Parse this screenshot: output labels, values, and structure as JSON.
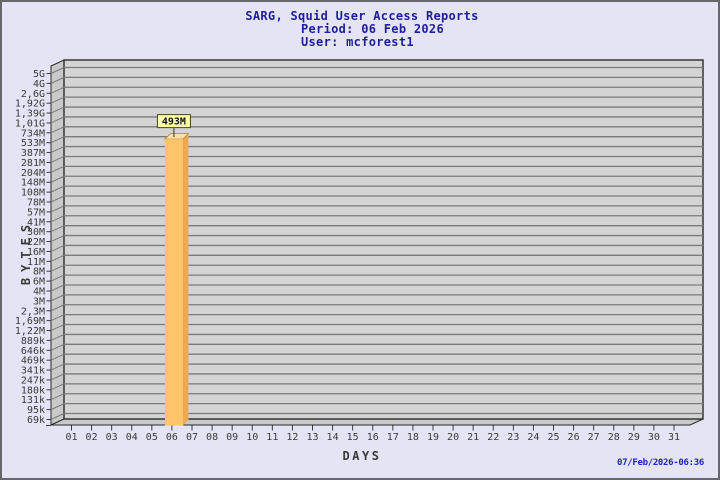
{
  "header": {
    "title": "SARG, Squid User Access Reports",
    "period_line": "Period: 06 Feb 2026",
    "user_line": "User: mcforest1"
  },
  "footer": {
    "timestamp": "07/Feb/2026-06:36"
  },
  "chart_data": {
    "type": "bar",
    "title": "SARG, Squid User Access Reports",
    "subtitle": [
      "Period: 06 Feb 2026",
      "User: mcforest1"
    ],
    "xlabel": "DAYS",
    "ylabel": "BYTES",
    "y_scale": "log",
    "ylim_bytes": [
      69000,
      5000000000
    ],
    "grid": "horizontal",
    "legend": "none",
    "x_categories": [
      "01",
      "02",
      "03",
      "04",
      "05",
      "06",
      "07",
      "08",
      "09",
      "10",
      "11",
      "12",
      "13",
      "14",
      "15",
      "16",
      "17",
      "18",
      "19",
      "20",
      "21",
      "22",
      "23",
      "24",
      "25",
      "26",
      "27",
      "28",
      "29",
      "30",
      "31"
    ],
    "y_tick_labels": [
      "5G",
      "4G",
      "2,6G",
      "1,92G",
      "1,39G",
      "1,01G",
      "734M",
      "533M",
      "387M",
      "281M",
      "204M",
      "148M",
      "108M",
      "78M",
      "57M",
      "41M",
      "30M",
      "22M",
      "16M",
      "11M",
      "8M",
      "6M",
      "4M",
      "3M",
      "2,3M",
      "1,69M",
      "1,22M",
      "889k",
      "646k",
      "469k",
      "341k",
      "247k",
      "180k",
      "131k",
      "95k",
      "69k"
    ],
    "bars": [
      {
        "day": "06",
        "value_bytes": 493000000,
        "label": "493M"
      }
    ],
    "colors": {
      "background": "#e4e4f4",
      "plot_face": "#d4d4d4",
      "plot_wall": "#c9c9c9",
      "grid_line": "#7a7a7a",
      "outline": "#2b2b2b",
      "axis_text": "#3a3a3a",
      "bar_front": "#fdc469",
      "bar_side": "#f0a850",
      "bar_top": "#fbe0a6",
      "bar_top_edge": "#a8852f",
      "label_box_bg": "#ffffa8",
      "label_box_border": "#44441a",
      "label_text": "#111111",
      "title_color": "#1f1f96",
      "timestamp_color": "#2222c2"
    }
  }
}
